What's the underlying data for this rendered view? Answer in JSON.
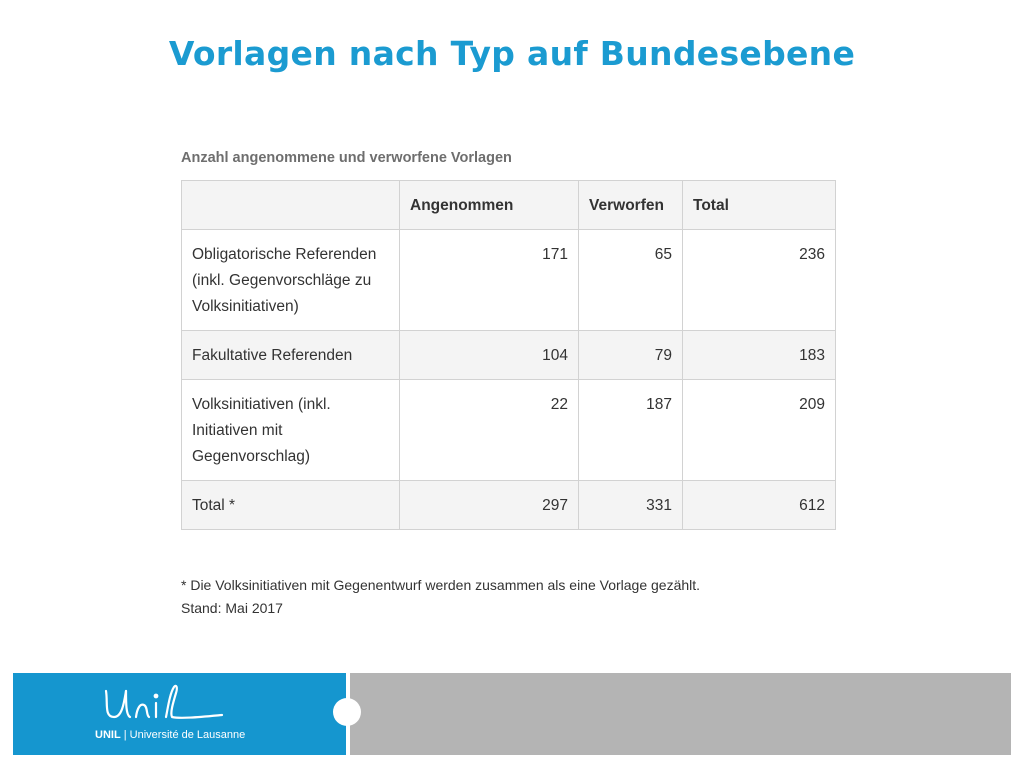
{
  "title": "Vorlagen nach Typ auf Bundesebene",
  "table": {
    "caption": "Anzahl angenommene und verworfene Vorlagen",
    "headers": [
      "",
      "Angenommen",
      "Verworfen",
      "Total"
    ],
    "rows": [
      {
        "label": "Obligatorische Referenden (inkl. Gegenvorschläge zu Volksinitiativen)",
        "angenommen": "171",
        "verworfen": "65",
        "total": "236"
      },
      {
        "label": "Fakultative Referenden",
        "angenommen": "104",
        "verworfen": "79",
        "total": "183"
      },
      {
        "label": "Volksinitiativen (inkl. Initiativen mit Gegenvorschlag)",
        "angenommen": "22",
        "verworfen": "187",
        "total": "209"
      },
      {
        "label": "Total *",
        "angenommen": "297",
        "verworfen": "331",
        "total": "612"
      }
    ]
  },
  "footnote": "* Die Volksinitiativen mit Gegenentwurf werden zusammen als eine Vorlage gezählt.",
  "stand": "Stand: Mai 2017",
  "footer": {
    "logo_script": "Unil",
    "brand": "UNIL",
    "separator": "|",
    "university": "Université de Lausanne"
  },
  "colors": {
    "title": "#1b9bd1",
    "footer_blue": "#1596cf",
    "footer_gray": "#b4b4b4"
  }
}
